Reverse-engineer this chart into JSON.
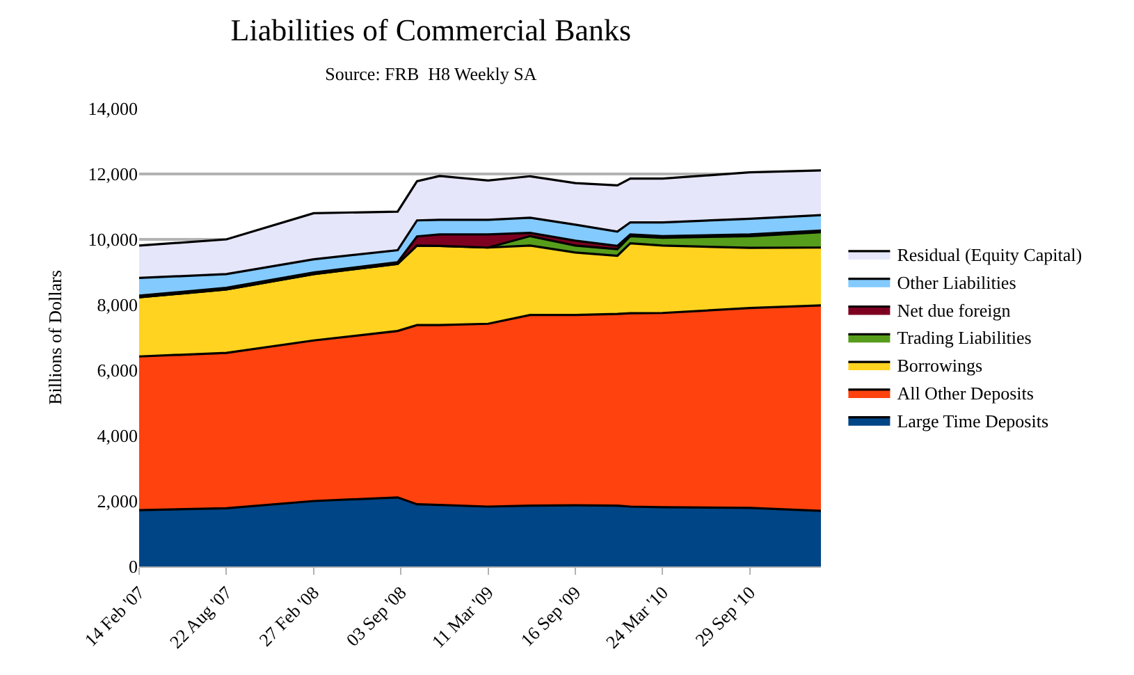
{
  "chart_data": {
    "type": "area",
    "stacked": true,
    "title": "Liabilities of Commercial Banks",
    "subtitle": "Source: FRB  H8 Weekly SA",
    "ylabel": "Billions of Dollars",
    "x": [
      "2007-02-14",
      "2007-08-22",
      "2008-02-27",
      "2008-08-27",
      "2008-10-08",
      "2008-11-26",
      "2009-03-11",
      "2009-06-10",
      "2009-09-16",
      "2009-12-16",
      "2010-01-13",
      "2010-03-24",
      "2010-09-29",
      "2011-03-02"
    ],
    "xlim": [
      "2007-02-14",
      "2011-03-02"
    ],
    "xticks": [
      {
        "value": "2007-02-14",
        "label": "14 Feb '07"
      },
      {
        "value": "2007-08-22",
        "label": "22 Aug '07"
      },
      {
        "value": "2008-02-27",
        "label": "27 Feb '08"
      },
      {
        "value": "2008-09-03",
        "label": "03 Sep '08"
      },
      {
        "value": "2009-03-11",
        "label": "11 Mar '09"
      },
      {
        "value": "2009-09-16",
        "label": "16 Sep '09"
      },
      {
        "value": "2010-03-24",
        "label": "24 Mar '10"
      },
      {
        "value": "2010-09-29",
        "label": "29 Sep '10"
      }
    ],
    "ylim": [
      0,
      14000
    ],
    "yticks": [
      {
        "value": 0,
        "label": "0"
      },
      {
        "value": 2000,
        "label": "2,000"
      },
      {
        "value": 4000,
        "label": "4,000"
      },
      {
        "value": 6000,
        "label": "6,000"
      },
      {
        "value": 8000,
        "label": "8,000"
      },
      {
        "value": 10000,
        "label": "10,000"
      },
      {
        "value": 12000,
        "label": "12,000"
      },
      {
        "value": 14000,
        "label": "14,000"
      }
    ],
    "grid": "y",
    "legend": "right",
    "series": [
      {
        "name": "Large Time Deposits",
        "color": "#004586",
        "values": [
          1720,
          1780,
          2000,
          2110,
          1900,
          1880,
          1830,
          1860,
          1870,
          1860,
          1830,
          1810,
          1790,
          1700
        ]
      },
      {
        "name": "All Other Deposits",
        "color": "#ff420e",
        "values": [
          4700,
          4750,
          4910,
          5090,
          5480,
          5500,
          5590,
          5830,
          5820,
          5860,
          5910,
          5940,
          6110,
          6280
        ]
      },
      {
        "name": "Borrowings",
        "color": "#ffd320",
        "values": [
          1810,
          1940,
          2030,
          2050,
          2430,
          2420,
          2330,
          2120,
          1910,
          1780,
          2140,
          2060,
          1840,
          1770
        ]
      },
      {
        "name": "Trading Liabilities",
        "color": "#579d1c",
        "values": [
          0,
          0,
          0,
          0,
          0,
          0,
          0,
          290,
          210,
          200,
          220,
          240,
          360,
          470
        ]
      },
      {
        "name": "Net due foreign",
        "color": "#7e0021",
        "values": [
          50,
          50,
          50,
          50,
          280,
          350,
          400,
          100,
          150,
          100,
          50,
          50,
          50,
          50
        ]
      },
      {
        "name": "Other Liabilities",
        "color": "#83caff",
        "values": [
          540,
          420,
          400,
          370,
          490,
          450,
          450,
          460,
          490,
          440,
          370,
          420,
          480,
          470
        ]
      },
      {
        "name": "Residual (Equity Capital)",
        "color": "#e6e6fa",
        "values": [
          990,
          1060,
          1410,
          1180,
          1200,
          1340,
          1200,
          1270,
          1270,
          1410,
          1340,
          1340,
          1420,
          1370
        ]
      }
    ]
  }
}
